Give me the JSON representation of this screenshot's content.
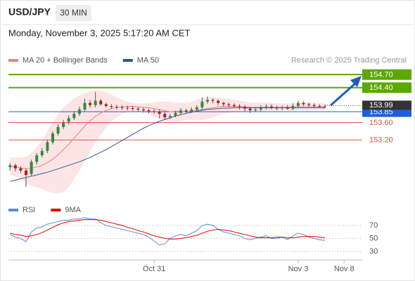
{
  "header": {
    "symbol": "USD/JPY",
    "interval": "30 MIN",
    "datetime": "Monday, November 3, 2025 5:17:20 AM CET"
  },
  "chart_data": [
    {
      "type": "candlestick",
      "open": [
        152.58,
        152.62,
        152.55,
        152.5,
        152.42,
        152.7,
        152.85,
        152.95,
        153.15,
        153.35,
        153.5,
        153.62,
        153.7,
        153.8,
        153.9,
        154.05,
        154.0,
        154.1,
        154.02,
        153.98,
        153.96,
        153.95,
        153.94,
        153.93,
        153.92,
        153.9,
        153.88,
        153.86,
        153.85,
        153.8,
        153.72,
        153.75,
        153.82,
        153.88,
        153.85,
        153.9,
        153.95,
        154.08,
        154.12,
        154.1,
        154.05,
        154.02,
        154.0,
        153.98,
        153.96,
        153.92,
        153.88,
        153.9,
        153.95,
        153.97,
        153.94,
        153.93,
        153.95,
        153.92,
        153.98,
        154.05,
        154.02,
        154.0,
        153.98,
        153.97
      ],
      "high": [
        152.68,
        152.66,
        152.6,
        152.55,
        152.75,
        152.9,
        153.02,
        153.2,
        153.4,
        153.56,
        153.66,
        153.76,
        153.86,
        153.96,
        154.15,
        154.12,
        154.3,
        154.14,
        154.06,
        154.02,
        154.01,
        154.0,
        153.99,
        153.98,
        153.96,
        153.94,
        153.92,
        153.91,
        153.9,
        153.84,
        153.8,
        153.87,
        153.93,
        153.92,
        153.95,
        154.0,
        154.18,
        154.2,
        154.16,
        154.13,
        154.08,
        154.06,
        154.04,
        154.02,
        154.0,
        153.96,
        153.95,
        154.0,
        154.02,
        154.02,
        153.99,
        153.99,
        154.0,
        154.04,
        154.1,
        154.09,
        154.06,
        154.04,
        154.02,
        154.01
      ],
      "low": [
        152.5,
        152.48,
        152.44,
        152.12,
        152.38,
        152.64,
        152.8,
        152.9,
        153.1,
        153.3,
        153.45,
        153.56,
        153.66,
        153.75,
        153.86,
        153.94,
        153.95,
        153.98,
        153.94,
        153.92,
        153.9,
        153.89,
        153.88,
        153.87,
        153.85,
        153.83,
        153.81,
        153.8,
        153.7,
        153.66,
        153.68,
        153.72,
        153.78,
        153.8,
        153.82,
        153.86,
        153.9,
        154.03,
        154.04,
        154.0,
        153.97,
        153.95,
        153.93,
        153.9,
        153.86,
        153.82,
        153.84,
        153.86,
        153.9,
        153.9,
        153.88,
        153.88,
        153.89,
        153.88,
        153.94,
        153.98,
        153.96,
        153.94,
        153.93,
        153.92
      ],
      "close": [
        152.62,
        152.55,
        152.5,
        152.4,
        152.7,
        152.85,
        152.95,
        153.15,
        153.35,
        153.5,
        153.6,
        153.7,
        153.8,
        153.9,
        154.05,
        154.0,
        154.1,
        154.02,
        153.98,
        153.96,
        153.95,
        153.94,
        153.93,
        153.92,
        153.9,
        153.88,
        153.86,
        153.85,
        153.8,
        153.72,
        153.75,
        153.82,
        153.88,
        153.85,
        153.9,
        153.95,
        154.08,
        154.12,
        154.1,
        154.05,
        154.02,
        154.0,
        153.98,
        153.96,
        153.92,
        153.88,
        153.9,
        153.95,
        153.97,
        153.94,
        153.93,
        153.95,
        153.92,
        153.98,
        154.05,
        154.02,
        154.0,
        153.98,
        153.97,
        153.96
      ],
      "up_color": "#2e8b3e",
      "down_color": "#a32020",
      "series": [
        {
          "name": "MA 20 + Bollinger Bands",
          "color": "#f08080",
          "values": [
            152.6,
            152.58,
            152.56,
            152.54,
            152.55,
            152.58,
            152.62,
            152.68,
            152.76,
            152.86,
            152.98,
            153.1,
            153.24,
            153.38,
            153.52,
            153.64,
            153.74,
            153.82,
            153.88,
            153.92,
            153.95,
            153.96,
            153.97,
            153.97,
            153.96,
            153.95,
            153.94,
            153.92,
            153.9,
            153.87,
            153.85,
            153.84,
            153.84,
            153.85,
            153.86,
            153.88,
            153.9,
            153.92,
            153.94,
            153.96,
            153.97,
            153.97,
            153.97,
            153.97,
            153.96,
            153.95,
            153.95,
            153.95,
            153.95,
            153.95,
            153.95,
            153.95,
            153.95,
            153.95,
            153.96,
            153.96,
            153.96,
            153.96,
            153.96,
            153.96
          ],
          "upper": [
            152.8,
            152.8,
            152.8,
            152.82,
            152.9,
            153.05,
            153.2,
            153.4,
            153.6,
            153.8,
            153.95,
            154.05,
            154.15,
            154.22,
            154.28,
            154.32,
            154.34,
            154.34,
            154.3,
            154.24,
            154.18,
            154.12,
            154.08,
            154.05,
            154.04,
            154.04,
            154.05,
            154.06,
            154.08,
            154.08,
            154.08,
            154.06,
            154.05,
            154.05,
            154.08,
            154.12,
            154.16,
            154.18,
            154.18,
            154.18,
            154.16,
            154.14,
            154.12,
            154.1,
            154.08,
            154.06,
            154.06,
            154.06,
            154.06,
            154.05,
            154.04,
            154.04,
            154.04,
            154.04,
            154.05,
            154.06,
            154.06,
            154.05,
            154.05,
            154.05
          ],
          "lower": [
            152.4,
            152.36,
            152.32,
            152.2,
            152.15,
            152.12,
            152.08,
            152.02,
            151.98,
            151.98,
            152.0,
            152.12,
            152.3,
            152.5,
            152.72,
            152.94,
            153.14,
            153.32,
            153.48,
            153.62,
            153.72,
            153.8,
            153.84,
            153.86,
            153.86,
            153.84,
            153.8,
            153.74,
            153.68,
            153.64,
            153.62,
            153.62,
            153.64,
            153.66,
            153.66,
            153.66,
            153.66,
            153.68,
            153.72,
            153.76,
            153.8,
            153.82,
            153.84,
            153.85,
            153.86,
            153.86,
            153.86,
            153.86,
            153.86,
            153.87,
            153.87,
            153.88,
            153.88,
            153.88,
            153.88,
            153.88,
            153.88,
            153.88,
            153.88,
            153.88
          ],
          "band_color": "#fcdcdc"
        },
        {
          "name": "MA 50",
          "color": "#2f5597",
          "values": [
            152.25,
            152.28,
            152.31,
            152.34,
            152.37,
            152.4,
            152.43,
            152.46,
            152.5,
            152.54,
            152.58,
            152.62,
            152.66,
            152.7,
            152.75,
            152.8,
            152.86,
            152.92,
            152.98,
            153.05,
            153.12,
            153.19,
            153.26,
            153.33,
            153.4,
            153.47,
            153.53,
            153.58,
            153.63,
            153.67,
            153.71,
            153.75,
            153.78,
            153.81,
            153.84,
            153.86,
            153.88,
            153.9,
            153.91,
            153.92,
            153.93,
            153.93,
            153.94,
            153.94,
            153.94,
            153.94,
            153.94,
            153.94,
            153.94,
            153.94,
            153.94,
            153.94,
            153.94,
            153.94,
            153.94,
            153.94,
            153.94,
            153.94,
            153.94,
            153.94
          ]
        }
      ],
      "levels": [
        {
          "value": 154.7,
          "label": "154.70",
          "color": "#5aa800",
          "boxed": true
        },
        {
          "value": 154.4,
          "label": "154.40",
          "color": "#5aa800",
          "boxed": true
        },
        {
          "value": 153.85,
          "label": "153.85",
          "color": "#1f5fd6",
          "boxed": true
        },
        {
          "value": 153.6,
          "label": "153.60",
          "color": "#e05050",
          "boxed": false
        },
        {
          "value": 153.2,
          "label": "153.20",
          "color": "#e05050",
          "boxed": false
        }
      ],
      "last_price": 153.99,
      "xlim": [
        -0.3,
        66
      ],
      "ylim": [
        151.9,
        154.88
      ],
      "xticks": [
        {
          "value": 27,
          "label": "Oct 31"
        },
        {
          "value": 54,
          "label": "Nov 3"
        },
        {
          "value": 62.6,
          "label": "Nov 8"
        }
      ],
      "annotation": "Research © 2025 Trading Central"
    },
    {
      "type": "line",
      "series": [
        {
          "name": "RSI",
          "color": "#5b8bd9",
          "values": [
            56,
            52,
            50,
            45,
            60,
            66,
            68,
            72,
            74,
            76,
            78,
            78,
            80,
            80,
            82,
            80,
            80,
            74,
            70,
            68,
            66,
            64,
            62,
            60,
            58,
            56,
            52,
            46,
            40,
            42,
            50,
            54,
            56,
            54,
            58,
            62,
            70,
            72,
            70,
            64,
            60,
            58,
            56,
            54,
            50,
            48,
            50,
            52,
            54,
            50,
            50,
            52,
            48,
            54,
            58,
            56,
            52,
            50,
            48,
            47
          ]
        },
        {
          "name": "9MA",
          "color": "#e00000",
          "values": [
            58,
            56,
            55,
            53,
            54,
            56,
            59,
            63,
            67,
            71,
            74,
            76,
            77,
            78,
            79,
            79,
            79,
            78,
            76,
            74,
            72,
            70,
            67,
            65,
            62,
            60,
            57,
            54,
            52,
            50,
            49,
            49,
            50,
            51,
            53,
            55,
            58,
            61,
            63,
            64,
            63,
            62,
            60,
            58,
            56,
            54,
            52,
            51,
            51,
            51,
            52,
            52,
            51,
            51,
            52,
            53,
            53,
            53,
            52,
            51
          ]
        }
      ],
      "xlim": [
        -0.3,
        66
      ],
      "ylim": [
        19,
        84
      ],
      "yticks": [
        70,
        50,
        30
      ]
    }
  ]
}
